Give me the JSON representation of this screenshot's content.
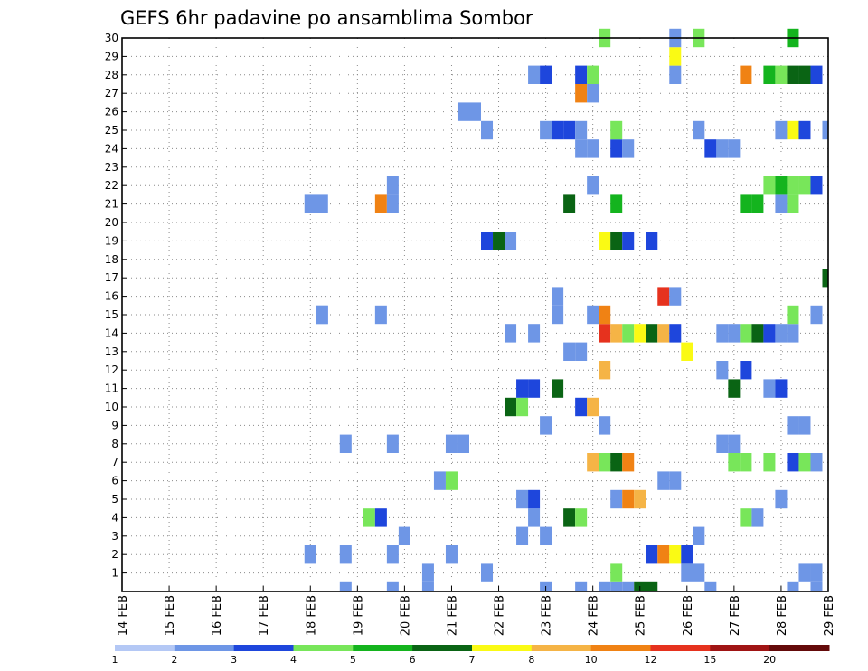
{
  "chart_data": {
    "type": "heatmap",
    "title": "GEFS 6hr padavine po ansamblima Sombor",
    "xlabel": "",
    "ylabel": "",
    "grid": true,
    "legend_position": "bottom",
    "y_range": [
      0,
      30
    ],
    "y_ticks": [
      "1",
      "2",
      "3",
      "4",
      "5",
      "6",
      "7",
      "8",
      "9",
      "10",
      "11",
      "12",
      "13",
      "14",
      "15",
      "16",
      "17",
      "18",
      "19",
      "20",
      "21",
      "22",
      "23",
      "24",
      "25",
      "26",
      "27",
      "28",
      "29",
      "30"
    ],
    "x_range": [
      0,
      60
    ],
    "x_ticks": [
      "14 FEB",
      "15 FEB",
      "16 FEB",
      "17 FEB",
      "18 FEB",
      "19 FEB",
      "20 FEB",
      "21 FEB",
      "22 FEB",
      "23 FEB",
      "24 FEB",
      "25 FEB",
      "26 FEB",
      "27 FEB",
      "28 FEB",
      "29 FEB"
    ],
    "legend_labels": [
      "1",
      "2",
      "3",
      "4",
      "5",
      "6",
      "7",
      "8",
      "10",
      "12",
      "15",
      "20"
    ],
    "legend_colors": [
      "#b4c8f5",
      "#6e96e6",
      "#1e46dc",
      "#78e65a",
      "#14b41e",
      "#0a6414",
      "#fafa14",
      "#f5b446",
      "#f08214",
      "#e6321e",
      "#a01414",
      "#640a0a"
    ],
    "cells": [
      [
        17,
        15,
        1
      ],
      [
        17,
        15,
        1
      ],
      [
        16,
        2,
        1
      ],
      [
        19,
        0,
        1
      ],
      [
        23,
        0,
        1
      ],
      [
        26,
        1,
        1
      ],
      [
        26,
        0,
        1
      ],
      [
        31,
        1,
        1
      ],
      [
        36,
        0,
        1
      ],
      [
        39,
        0,
        1
      ],
      [
        41,
        0,
        1
      ],
      [
        42,
        0,
        1
      ],
      [
        42,
        1,
        3
      ],
      [
        43,
        0,
        1
      ],
      [
        44,
        0,
        5
      ],
      [
        45,
        0,
        5
      ],
      [
        49,
        1,
        1
      ],
      [
        50,
        0,
        1
      ],
      [
        57,
        0,
        1
      ],
      [
        58,
        1,
        1
      ],
      [
        59,
        0,
        1
      ],
      [
        59,
        1,
        1
      ],
      [
        19,
        2,
        1
      ],
      [
        23,
        2,
        1
      ],
      [
        28,
        2,
        1
      ],
      [
        45,
        2,
        2
      ],
      [
        46,
        2,
        8
      ],
      [
        47,
        2,
        6
      ],
      [
        48,
        2,
        2
      ],
      [
        48,
        1,
        1
      ],
      [
        24,
        3,
        1
      ],
      [
        34,
        3,
        1
      ],
      [
        36,
        3,
        1
      ],
      [
        49,
        3,
        1
      ],
      [
        21,
        4,
        3
      ],
      [
        22,
        4,
        2
      ],
      [
        35,
        4,
        1
      ],
      [
        38,
        4,
        5
      ],
      [
        39,
        4,
        3
      ],
      [
        53,
        4,
        3
      ],
      [
        54,
        4,
        1
      ],
      [
        34,
        5,
        1
      ],
      [
        35,
        5,
        2
      ],
      [
        42,
        5,
        1
      ],
      [
        43,
        5,
        8
      ],
      [
        44,
        5,
        7
      ],
      [
        56,
        5,
        1
      ],
      [
        27,
        6,
        1
      ],
      [
        28,
        6,
        3
      ],
      [
        46,
        6,
        1
      ],
      [
        47,
        6,
        1
      ],
      [
        40,
        7,
        7
      ],
      [
        41,
        7,
        3
      ],
      [
        42,
        7,
        5
      ],
      [
        43,
        7,
        8
      ],
      [
        52,
        7,
        3
      ],
      [
        53,
        7,
        3
      ],
      [
        55,
        7,
        3
      ],
      [
        57,
        7,
        2
      ],
      [
        58,
        7,
        3
      ],
      [
        59,
        7,
        1
      ],
      [
        19,
        8,
        1
      ],
      [
        23,
        8,
        1
      ],
      [
        28,
        8,
        1
      ],
      [
        29,
        8,
        1
      ],
      [
        51,
        8,
        1
      ],
      [
        52,
        8,
        1
      ],
      [
        36,
        9,
        1
      ],
      [
        41,
        9,
        1
      ],
      [
        57,
        9,
        1
      ],
      [
        58,
        9,
        1
      ],
      [
        33,
        10,
        5
      ],
      [
        34,
        10,
        3
      ],
      [
        39,
        10,
        2
      ],
      [
        40,
        10,
        7
      ],
      [
        34,
        11,
        2
      ],
      [
        35,
        11,
        2
      ],
      [
        37,
        11,
        5
      ],
      [
        52,
        11,
        5
      ],
      [
        55,
        11,
        1
      ],
      [
        56,
        11,
        2
      ],
      [
        41,
        12,
        7
      ],
      [
        51,
        12,
        1
      ],
      [
        53,
        12,
        2
      ],
      [
        38,
        13,
        1
      ],
      [
        39,
        13,
        1
      ],
      [
        48,
        13,
        6
      ],
      [
        33,
        14,
        1
      ],
      [
        35,
        14,
        1
      ],
      [
        41,
        14,
        9
      ],
      [
        42,
        14,
        7
      ],
      [
        43,
        14,
        3
      ],
      [
        44,
        14,
        6
      ],
      [
        45,
        14,
        5
      ],
      [
        46,
        14,
        7
      ],
      [
        47,
        14,
        2
      ],
      [
        51,
        14,
        1
      ],
      [
        52,
        14,
        1
      ],
      [
        53,
        14,
        3
      ],
      [
        54,
        14,
        5
      ],
      [
        55,
        14,
        2
      ],
      [
        56,
        14,
        1
      ],
      [
        57,
        14,
        1
      ],
      [
        22,
        15,
        1
      ],
      [
        37,
        15,
        1
      ],
      [
        40,
        15,
        1
      ],
      [
        41,
        15,
        8
      ],
      [
        57,
        15,
        3
      ],
      [
        59,
        15,
        1
      ],
      [
        37,
        16,
        1
      ],
      [
        46,
        16,
        9
      ],
      [
        47,
        16,
        1
      ],
      [
        60,
        17,
        5
      ],
      [
        31,
        19,
        2
      ],
      [
        32,
        19,
        5
      ],
      [
        33,
        19,
        1
      ],
      [
        41,
        19,
        6
      ],
      [
        42,
        19,
        5
      ],
      [
        43,
        19,
        2
      ],
      [
        45,
        19,
        2
      ],
      [
        16,
        21,
        1
      ],
      [
        17,
        21,
        1
      ],
      [
        22,
        21,
        8
      ],
      [
        23,
        21,
        1
      ],
      [
        38,
        21,
        5
      ],
      [
        42,
        21,
        4
      ],
      [
        53,
        21,
        4
      ],
      [
        54,
        21,
        4
      ],
      [
        56,
        21,
        1
      ],
      [
        57,
        21,
        3
      ],
      [
        23,
        22,
        1
      ],
      [
        40,
        22,
        1
      ],
      [
        55,
        22,
        3
      ],
      [
        56,
        22,
        4
      ],
      [
        57,
        22,
        3
      ],
      [
        58,
        22,
        3
      ],
      [
        59,
        22,
        2
      ],
      [
        39,
        24,
        1
      ],
      [
        40,
        24,
        1
      ],
      [
        42,
        24,
        2
      ],
      [
        43,
        24,
        1
      ],
      [
        50,
        24,
        2
      ],
      [
        51,
        24,
        1
      ],
      [
        52,
        24,
        1
      ],
      [
        31,
        25,
        1
      ],
      [
        36,
        25,
        1
      ],
      [
        37,
        25,
        2
      ],
      [
        38,
        25,
        2
      ],
      [
        39,
        25,
        1
      ],
      [
        42,
        25,
        3
      ],
      [
        49,
        25,
        1
      ],
      [
        56,
        25,
        1
      ],
      [
        57,
        25,
        6
      ],
      [
        58,
        25,
        2
      ],
      [
        60,
        25,
        1
      ],
      [
        29,
        26,
        1
      ],
      [
        30,
        26,
        1
      ],
      [
        39,
        27,
        8
      ],
      [
        40,
        27,
        1
      ],
      [
        35,
        28,
        1
      ],
      [
        36,
        28,
        2
      ],
      [
        39,
        28,
        2
      ],
      [
        40,
        28,
        3
      ],
      [
        47,
        28,
        1
      ],
      [
        53,
        28,
        8
      ],
      [
        55,
        28,
        4
      ],
      [
        56,
        28,
        3
      ],
      [
        57,
        28,
        5
      ],
      [
        58,
        28,
        5
      ],
      [
        59,
        28,
        2
      ],
      [
        47,
        29,
        6
      ],
      [
        41,
        30,
        3
      ],
      [
        47,
        30,
        1
      ],
      [
        49,
        30,
        3
      ],
      [
        57,
        30,
        4
      ]
    ]
  }
}
